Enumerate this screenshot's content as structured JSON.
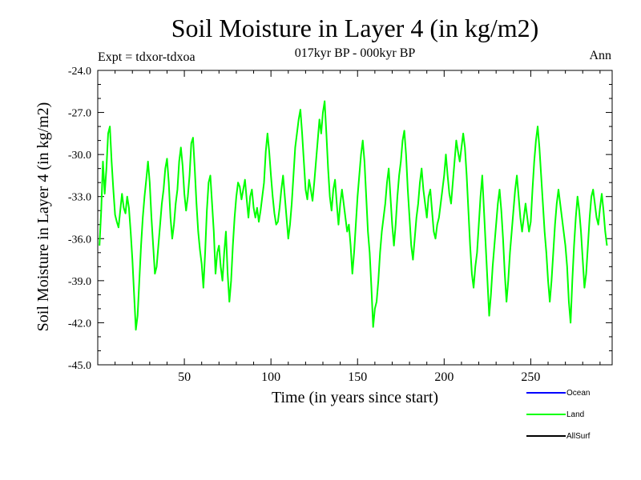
{
  "chart_data": {
    "type": "line",
    "title": "Soil Moisture in Layer 4 (in kg/m2)",
    "subtitle": "017kyr BP - 000kyr BP",
    "left_label": "Expt = tdxor-tdxoa",
    "right_label": "Ann",
    "xlabel": "Time (in years since start)",
    "ylabel": "Soil Moisture in Layer 4 (in kg/m2)",
    "xlim": [
      0,
      297
    ],
    "ylim": [
      -45.0,
      -24.0
    ],
    "x_ticks": [
      50,
      100,
      150,
      200,
      250
    ],
    "y_ticks": [
      "-45.0",
      "-42.0",
      "-39.0",
      "-36.0",
      "-33.0",
      "-30.0",
      "-27.0",
      "-24.0"
    ],
    "grid": false,
    "legend_placement": "bottom-right",
    "legend": [
      {
        "name": "Ocean",
        "color": "#0000ff"
      },
      {
        "name": "Land",
        "color": "#00ff00"
      },
      {
        "name": "AllSurf",
        "color": "#000000"
      }
    ],
    "series": [
      {
        "name": "Land",
        "color": "#00ff00",
        "x_start": 1,
        "x_step": 1,
        "values": [
          -36.5,
          -34.0,
          -30.5,
          -32.8,
          -31.0,
          -28.5,
          -28.0,
          -30.5,
          -32.5,
          -34.3,
          -34.8,
          -35.2,
          -34.0,
          -32.8,
          -33.8,
          -34.2,
          -33.0,
          -33.8,
          -35.5,
          -37.5,
          -40.0,
          -42.5,
          -41.5,
          -39.0,
          -36.5,
          -34.5,
          -33.0,
          -31.8,
          -30.5,
          -32.0,
          -34.5,
          -36.5,
          -38.5,
          -38.0,
          -36.5,
          -35.0,
          -33.5,
          -32.5,
          -31.0,
          -30.3,
          -32.0,
          -34.5,
          -36.0,
          -35.0,
          -33.5,
          -32.5,
          -30.5,
          -29.5,
          -30.8,
          -32.8,
          -34.0,
          -33.0,
          -31.5,
          -29.2,
          -28.8,
          -31.0,
          -33.5,
          -35.5,
          -36.8,
          -37.8,
          -39.5,
          -37.0,
          -34.0,
          -32.0,
          -31.5,
          -33.5,
          -35.5,
          -38.5,
          -37.0,
          -36.5,
          -38.0,
          -39.0,
          -37.0,
          -35.5,
          -38.5,
          -40.5,
          -39.0,
          -36.5,
          -34.5,
          -33.0,
          -32.0,
          -32.3,
          -33.2,
          -32.5,
          -31.8,
          -33.2,
          -34.5,
          -33.0,
          -32.5,
          -33.8,
          -34.5,
          -33.8,
          -34.8,
          -34.0,
          -33.0,
          -32.0,
          -29.8,
          -28.5,
          -29.8,
          -31.5,
          -33.0,
          -34.2,
          -35.0,
          -34.8,
          -33.8,
          -32.5,
          -31.5,
          -33.0,
          -34.5,
          -36.0,
          -35.0,
          -33.5,
          -31.5,
          -29.5,
          -28.5,
          -27.5,
          -26.8,
          -28.5,
          -30.5,
          -32.5,
          -33.2,
          -31.8,
          -32.5,
          -33.3,
          -32.0,
          -30.5,
          -29.0,
          -27.5,
          -28.5,
          -27.0,
          -26.2,
          -28.5,
          -31.0,
          -33.0,
          -34.0,
          -32.5,
          -31.8,
          -33.5,
          -35.0,
          -33.5,
          -32.5,
          -33.5,
          -34.5,
          -35.5,
          -35.0,
          -36.5,
          -38.5,
          -37.0,
          -35.0,
          -33.0,
          -31.5,
          -30.0,
          -29.0,
          -30.5,
          -33.0,
          -35.5,
          -37.0,
          -39.5,
          -42.3,
          -41.0,
          -40.5,
          -39.0,
          -37.0,
          -35.5,
          -34.5,
          -33.5,
          -32.0,
          -31.0,
          -33.0,
          -35.0,
          -36.5,
          -35.0,
          -33.0,
          -31.5,
          -30.5,
          -29.0,
          -28.3,
          -30.0,
          -32.5,
          -34.5,
          -36.5,
          -37.5,
          -36.0,
          -34.5,
          -33.5,
          -32.0,
          -31.0,
          -32.5,
          -33.5,
          -34.5,
          -33.0,
          -32.5,
          -34.0,
          -35.5,
          -36.0,
          -35.0,
          -34.5,
          -33.5,
          -32.5,
          -31.5,
          -30.0,
          -31.5,
          -32.8,
          -33.5,
          -32.0,
          -30.5,
          -29.0,
          -29.8,
          -30.5,
          -29.5,
          -28.5,
          -29.5,
          -31.5,
          -34.0,
          -36.5,
          -38.5,
          -39.5,
          -38.0,
          -37.0,
          -35.0,
          -33.0,
          -31.5,
          -34.0,
          -36.5,
          -39.0,
          -41.5,
          -40.0,
          -38.0,
          -36.5,
          -35.0,
          -33.5,
          -32.5,
          -34.0,
          -36.0,
          -38.5,
          -40.5,
          -39.0,
          -37.0,
          -35.5,
          -34.0,
          -32.5,
          -31.5,
          -33.0,
          -34.5,
          -35.5,
          -34.5,
          -33.5,
          -34.5,
          -35.5,
          -34.8,
          -32.5,
          -30.5,
          -29.0,
          -28.0,
          -29.5,
          -31.5,
          -33.5,
          -35.5,
          -37.0,
          -39.0,
          -40.5,
          -39.0,
          -37.0,
          -35.0,
          -33.5,
          -32.5,
          -33.5,
          -34.5,
          -35.5,
          -36.5,
          -38.0,
          -40.5,
          -42.0,
          -39.0,
          -36.5,
          -34.5,
          -33.0,
          -34.0,
          -35.5,
          -37.5,
          -39.5,
          -38.5,
          -36.5,
          -34.5,
          -33.0,
          -32.5,
          -33.5,
          -34.5,
          -35.0,
          -33.8,
          -32.8,
          -34.0,
          -35.5,
          -36.5
        ]
      }
    ]
  }
}
